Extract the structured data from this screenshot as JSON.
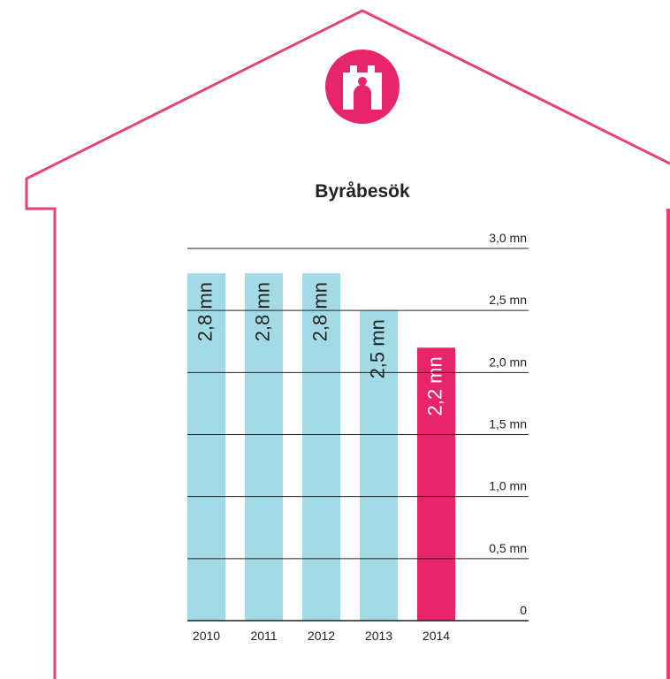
{
  "chart_data": {
    "type": "bar",
    "title": "Byråbesök",
    "categories": [
      "2010",
      "2011",
      "2012",
      "2013",
      "2014"
    ],
    "values": [
      2.8,
      2.8,
      2.8,
      2.5,
      2.2
    ],
    "value_labels": [
      "2,8 mn",
      "2,8 mn",
      "2,8 mn",
      "2,5 mn",
      "2,2 mn"
    ],
    "colors": [
      "#a2dbe6",
      "#a2dbe6",
      "#a2dbe6",
      "#a2dbe6",
      "#e8246a"
    ],
    "ylim": [
      0,
      3
    ],
    "yticks": [
      0,
      {
        "value": 0.5,
        "label": "0,5 mn"
      },
      {
        "value": 1,
        "label": "1,0 mn"
      },
      {
        "value": 1.5,
        "label": "1,5 mn"
      },
      {
        "value": 2,
        "label": "2,0 mn"
      },
      {
        "value": 2.5,
        "label": "2,5 mn"
      },
      {
        "value": 3,
        "label": "3,0 mn"
      }
    ],
    "grid": true
  }
}
